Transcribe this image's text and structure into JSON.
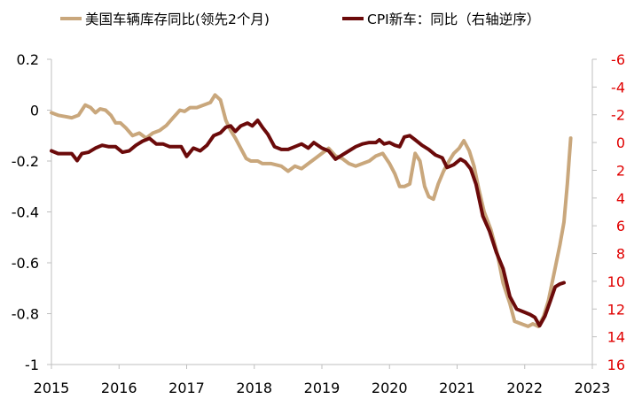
{
  "chart_data": {
    "type": "line",
    "title": "",
    "legend": {
      "placement": "top",
      "entries": [
        {
          "label": "美国车辆库存同比(领先2个月)",
          "color": "#c9a77c"
        },
        {
          "label": "CPI新车：同比（右轴逆序）",
          "color": "#6b0a0a"
        }
      ]
    },
    "x_ticks": [
      "2015",
      "2016",
      "2017",
      "2018",
      "2019",
      "2020",
      "2021",
      "2022",
      "2023"
    ],
    "x_range": [
      2015.0,
      2023.0
    ],
    "y_left": {
      "range": [
        -1.0,
        0.2
      ],
      "ticks": [
        "0.2",
        "0",
        "-0.2",
        "-0.4",
        "-0.6",
        "-0.8",
        "-1"
      ]
    },
    "y_right": {
      "inverted": true,
      "range": [
        16,
        -6
      ],
      "ticks": [
        "-6",
        "-4",
        "-2",
        "0",
        "2",
        "4",
        "6",
        "8",
        "10",
        "12",
        "14",
        "16"
      ],
      "tick_color": "#e00000"
    },
    "grid": false,
    "series": [
      {
        "name": "美国车辆库存同比(领先2个月)",
        "axis": "left",
        "color": "#c9a77c",
        "points": [
          [
            2015.0,
            -0.01
          ],
          [
            2015.1,
            -0.02
          ],
          [
            2015.2,
            -0.025
          ],
          [
            2015.3,
            -0.03
          ],
          [
            2015.4,
            -0.02
          ],
          [
            2015.45,
            0.0
          ],
          [
            2015.5,
            0.02
          ],
          [
            2015.58,
            0.01
          ],
          [
            2015.65,
            -0.01
          ],
          [
            2015.72,
            0.005
          ],
          [
            2015.8,
            0.0
          ],
          [
            2015.88,
            -0.02
          ],
          [
            2015.95,
            -0.05
          ],
          [
            2016.02,
            -0.05
          ],
          [
            2016.1,
            -0.07
          ],
          [
            2016.2,
            -0.1
          ],
          [
            2016.3,
            -0.09
          ],
          [
            2016.4,
            -0.11
          ],
          [
            2016.5,
            -0.09
          ],
          [
            2016.6,
            -0.08
          ],
          [
            2016.7,
            -0.06
          ],
          [
            2016.8,
            -0.03
          ],
          [
            2016.9,
            0.0
          ],
          [
            2016.97,
            -0.005
          ],
          [
            2017.05,
            0.01
          ],
          [
            2017.15,
            0.01
          ],
          [
            2017.25,
            0.02
          ],
          [
            2017.35,
            0.03
          ],
          [
            2017.42,
            0.06
          ],
          [
            2017.5,
            0.04
          ],
          [
            2017.58,
            -0.04
          ],
          [
            2017.65,
            -0.08
          ],
          [
            2017.72,
            -0.11
          ],
          [
            2017.8,
            -0.15
          ],
          [
            2017.88,
            -0.19
          ],
          [
            2017.95,
            -0.2
          ],
          [
            2018.05,
            -0.2
          ],
          [
            2018.12,
            -0.21
          ],
          [
            2018.25,
            -0.21
          ],
          [
            2018.4,
            -0.22
          ],
          [
            2018.5,
            -0.24
          ],
          [
            2018.6,
            -0.22
          ],
          [
            2018.7,
            -0.23
          ],
          [
            2018.8,
            -0.21
          ],
          [
            2018.9,
            -0.19
          ],
          [
            2019.0,
            -0.17
          ],
          [
            2019.1,
            -0.15
          ],
          [
            2019.2,
            -0.18
          ],
          [
            2019.3,
            -0.19
          ],
          [
            2019.4,
            -0.21
          ],
          [
            2019.5,
            -0.22
          ],
          [
            2019.6,
            -0.21
          ],
          [
            2019.7,
            -0.2
          ],
          [
            2019.8,
            -0.18
          ],
          [
            2019.9,
            -0.17
          ],
          [
            2020.0,
            -0.21
          ],
          [
            2020.08,
            -0.25
          ],
          [
            2020.15,
            -0.3
          ],
          [
            2020.22,
            -0.3
          ],
          [
            2020.3,
            -0.29
          ],
          [
            2020.38,
            -0.17
          ],
          [
            2020.45,
            -0.2
          ],
          [
            2020.52,
            -0.3
          ],
          [
            2020.58,
            -0.34
          ],
          [
            2020.65,
            -0.35
          ],
          [
            2020.72,
            -0.29
          ],
          [
            2020.8,
            -0.24
          ],
          [
            2020.88,
            -0.2
          ],
          [
            2020.95,
            -0.17
          ],
          [
            2021.03,
            -0.15
          ],
          [
            2021.1,
            -0.12
          ],
          [
            2021.18,
            -0.16
          ],
          [
            2021.25,
            -0.22
          ],
          [
            2021.32,
            -0.31
          ],
          [
            2021.4,
            -0.4
          ],
          [
            2021.5,
            -0.47
          ],
          [
            2021.6,
            -0.57
          ],
          [
            2021.68,
            -0.68
          ],
          [
            2021.78,
            -0.76
          ],
          [
            2021.85,
            -0.83
          ],
          [
            2021.95,
            -0.84
          ],
          [
            2022.05,
            -0.85
          ],
          [
            2022.12,
            -0.84
          ],
          [
            2022.2,
            -0.85
          ],
          [
            2022.28,
            -0.81
          ],
          [
            2022.35,
            -0.75
          ],
          [
            2022.45,
            -0.62
          ],
          [
            2022.52,
            -0.53
          ],
          [
            2022.58,
            -0.44
          ],
          [
            2022.63,
            -0.29
          ],
          [
            2022.68,
            -0.11
          ]
        ]
      },
      {
        "name": "CPI新车：同比（右轴逆序）",
        "axis": "right",
        "color": "#6b0a0a",
        "points": [
          [
            2015.0,
            0.6
          ],
          [
            2015.1,
            0.8
          ],
          [
            2015.2,
            0.8
          ],
          [
            2015.3,
            0.8
          ],
          [
            2015.38,
            1.3
          ],
          [
            2015.45,
            0.8
          ],
          [
            2015.55,
            0.7
          ],
          [
            2015.65,
            0.4
          ],
          [
            2015.75,
            0.2
          ],
          [
            2015.85,
            0.3
          ],
          [
            2015.95,
            0.3
          ],
          [
            2016.05,
            0.7
          ],
          [
            2016.15,
            0.6
          ],
          [
            2016.25,
            0.2
          ],
          [
            2016.35,
            -0.1
          ],
          [
            2016.45,
            -0.3
          ],
          [
            2016.55,
            0.1
          ],
          [
            2016.65,
            0.1
          ],
          [
            2016.75,
            0.3
          ],
          [
            2016.85,
            0.3
          ],
          [
            2016.92,
            0.3
          ],
          [
            2017.0,
            1.0
          ],
          [
            2017.1,
            0.4
          ],
          [
            2017.2,
            0.6
          ],
          [
            2017.3,
            0.2
          ],
          [
            2017.4,
            -0.5
          ],
          [
            2017.5,
            -0.7
          ],
          [
            2017.58,
            -1.1
          ],
          [
            2017.65,
            -1.2
          ],
          [
            2017.72,
            -0.8
          ],
          [
            2017.8,
            -1.2
          ],
          [
            2017.9,
            -1.4
          ],
          [
            2017.97,
            -1.2
          ],
          [
            2018.05,
            -1.6
          ],
          [
            2018.12,
            -1.1
          ],
          [
            2018.2,
            -0.6
          ],
          [
            2018.3,
            0.3
          ],
          [
            2018.4,
            0.5
          ],
          [
            2018.5,
            0.5
          ],
          [
            2018.6,
            0.3
          ],
          [
            2018.7,
            0.1
          ],
          [
            2018.8,
            0.4
          ],
          [
            2018.88,
            0.0
          ],
          [
            2019.0,
            0.4
          ],
          [
            2019.1,
            0.6
          ],
          [
            2019.2,
            1.2
          ],
          [
            2019.3,
            0.9
          ],
          [
            2019.4,
            0.6
          ],
          [
            2019.5,
            0.3
          ],
          [
            2019.6,
            0.1
          ],
          [
            2019.7,
            0.0
          ],
          [
            2019.8,
            0.0
          ],
          [
            2019.85,
            -0.2
          ],
          [
            2019.92,
            0.1
          ],
          [
            2020.0,
            0.0
          ],
          [
            2020.08,
            0.2
          ],
          [
            2020.15,
            0.3
          ],
          [
            2020.22,
            -0.4
          ],
          [
            2020.3,
            -0.5
          ],
          [
            2020.38,
            -0.2
          ],
          [
            2020.48,
            0.2
          ],
          [
            2020.58,
            0.5
          ],
          [
            2020.68,
            0.9
          ],
          [
            2020.78,
            1.1
          ],
          [
            2020.85,
            1.8
          ],
          [
            2020.95,
            1.6
          ],
          [
            2021.05,
            1.2
          ],
          [
            2021.12,
            1.4
          ],
          [
            2021.2,
            1.9
          ],
          [
            2021.28,
            3.0
          ],
          [
            2021.38,
            5.3
          ],
          [
            2021.48,
            6.4
          ],
          [
            2021.58,
            7.9
          ],
          [
            2021.68,
            9.1
          ],
          [
            2021.78,
            11.1
          ],
          [
            2021.88,
            12.0
          ],
          [
            2021.98,
            12.2
          ],
          [
            2022.08,
            12.4
          ],
          [
            2022.15,
            12.6
          ],
          [
            2022.22,
            13.2
          ],
          [
            2022.3,
            12.5
          ],
          [
            2022.38,
            11.4
          ],
          [
            2022.45,
            10.4
          ],
          [
            2022.52,
            10.2
          ],
          [
            2022.58,
            10.1
          ]
        ]
      }
    ]
  }
}
